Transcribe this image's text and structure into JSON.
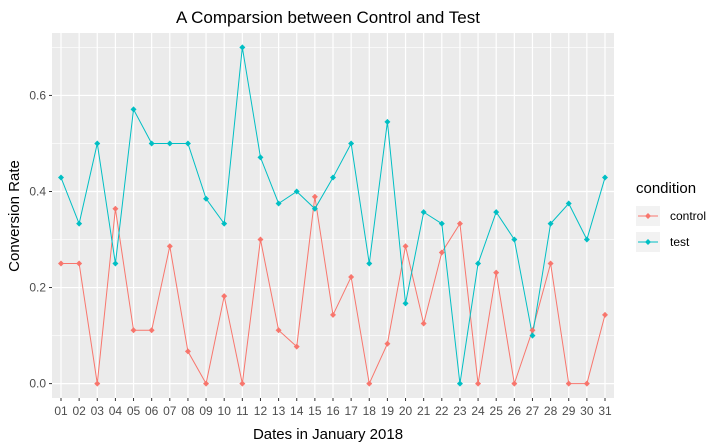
{
  "chart_data": {
    "type": "line",
    "title": "A Comparsion between Control and Test",
    "xlabel": "Dates in January 2018",
    "ylabel": "Conversion Rate",
    "categories": [
      "01",
      "02",
      "03",
      "04",
      "05",
      "06",
      "07",
      "08",
      "09",
      "10",
      "11",
      "12",
      "13",
      "14",
      "15",
      "16",
      "17",
      "18",
      "19",
      "20",
      "21",
      "22",
      "23",
      "24",
      "25",
      "26",
      "27",
      "28",
      "29",
      "30",
      "31"
    ],
    "yticks": [
      "0.0",
      "0.2",
      "0.4",
      "0.6"
    ],
    "ylim": [
      -0.03,
      0.73
    ],
    "grid": true,
    "legend": {
      "title": "condition",
      "position": "right"
    },
    "series": [
      {
        "name": "control",
        "color": "#F8766D",
        "values": [
          0.25,
          0.25,
          0.0,
          0.364,
          0.111,
          0.111,
          0.286,
          0.067,
          0.0,
          0.182,
          0.0,
          0.3,
          0.111,
          0.077,
          0.389,
          0.143,
          0.222,
          0.0,
          0.083,
          0.286,
          0.125,
          0.273,
          0.333,
          0.0,
          0.231,
          0.0,
          0.111,
          0.25,
          0.0,
          0.0,
          0.143
        ]
      },
      {
        "name": "test",
        "color": "#00BFC4",
        "values": [
          0.429,
          0.333,
          0.5,
          0.25,
          0.571,
          0.5,
          0.5,
          0.5,
          0.385,
          0.333,
          0.7,
          0.471,
          0.375,
          0.4,
          0.364,
          0.429,
          0.5,
          0.25,
          0.545,
          0.167,
          0.357,
          0.333,
          0.0,
          0.25,
          0.357,
          0.3,
          0.1,
          0.333,
          0.375,
          0.3,
          0.429
        ]
      }
    ]
  }
}
